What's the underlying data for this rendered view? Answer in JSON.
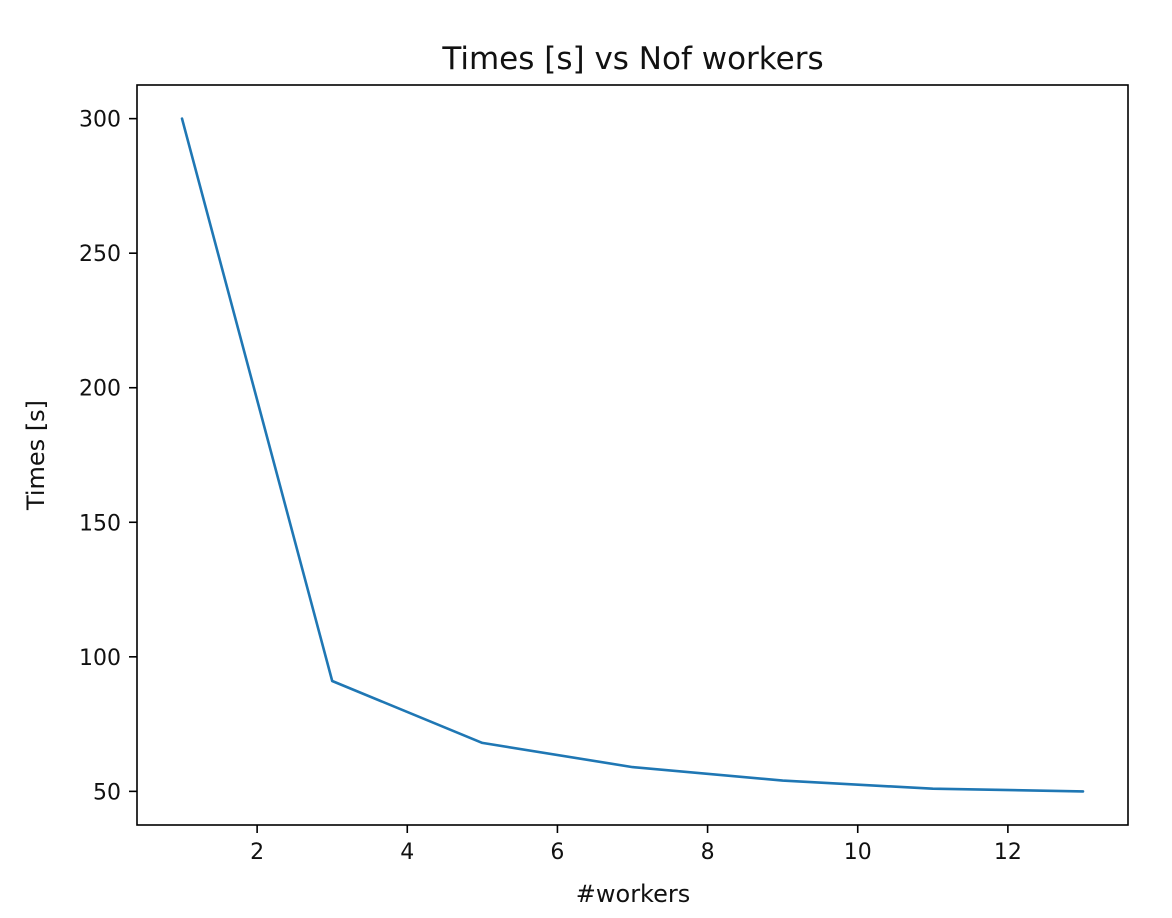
{
  "chart_data": {
    "type": "line",
    "title": "Times [s] vs Nof workers",
    "xlabel": "#workers",
    "ylabel": "Times [s]",
    "xlim": [
      0.4,
      13.6
    ],
    "ylim": [
      37.5,
      312.5
    ],
    "xticks": [
      2,
      4,
      6,
      8,
      10,
      12
    ],
    "yticks": [
      50,
      100,
      150,
      200,
      250,
      300
    ],
    "grid": false,
    "legend": "none",
    "series": [
      {
        "x": [
          1,
          3,
          5,
          7,
          9,
          11,
          13
        ],
        "y": [
          300,
          91,
          68,
          59,
          54,
          51,
          50
        ],
        "color": "#1f77b4"
      }
    ]
  }
}
